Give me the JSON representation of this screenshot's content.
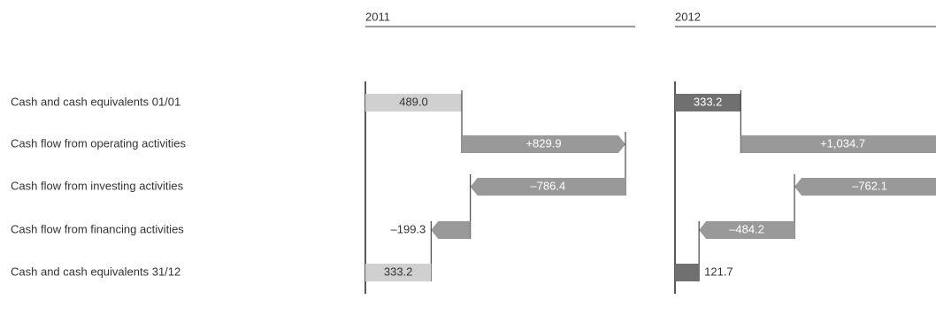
{
  "chart_data": [
    {
      "type": "waterfall",
      "title": "2011",
      "categories": [
        "Cash and cash equivalents 01/01",
        "Cash flow from operating activities",
        "Cash flow from investing activities",
        "Cash flow from financing activities",
        "Cash and cash equivalents 31/12"
      ],
      "measures": [
        "absolute",
        "relative",
        "relative",
        "relative",
        "total"
      ],
      "values": [
        489.0,
        829.9,
        -786.4,
        -199.3,
        333.2
      ],
      "value_labels": [
        "489.0",
        "+829.9",
        "–786.4",
        "–199.3",
        "333.2"
      ],
      "total_color": "#d0d0d0",
      "color": "#999999"
    },
    {
      "type": "waterfall",
      "title": "2012",
      "measures": [
        "absolute",
        "relative",
        "relative",
        "relative",
        "total"
      ],
      "values": [
        333.2,
        1034.7,
        -762.1,
        -484.2,
        121.7
      ],
      "value_labels": [
        "333.2",
        "+1,034.7",
        "–762.1",
        "–484.2",
        "121.7"
      ],
      "total_color": "#707070",
      "color": "#999999"
    }
  ]
}
